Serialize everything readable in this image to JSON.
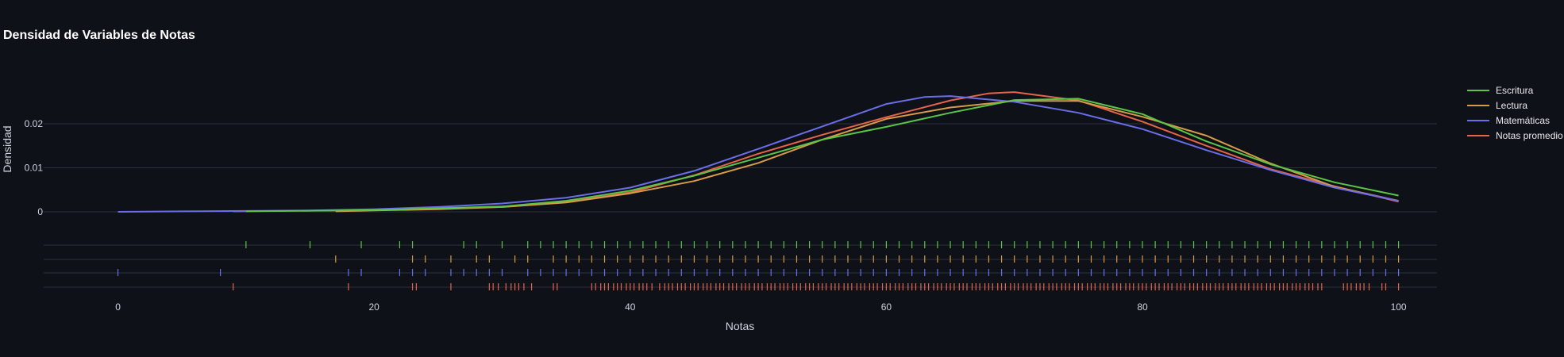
{
  "chart_data": {
    "type": "line",
    "title": "Densidad de Variables de Notas",
    "xlabel": "Notas",
    "ylabel": "Densidad",
    "xlim": [
      -5.8,
      103
    ],
    "ylim": [
      0,
      0.031
    ],
    "x_ticks": [
      0,
      20,
      40,
      60,
      80,
      100
    ],
    "y_ticks": [
      0,
      0.01,
      0.02
    ],
    "y_tick_labels": [
      "0",
      "0.01",
      "0.02"
    ],
    "grid": true,
    "legend_position": "right",
    "background": "#0e1117",
    "series": [
      {
        "name": "Escritura",
        "color": "#5ac547",
        "x": [
          10,
          20,
          30,
          35,
          40,
          45,
          50,
          55,
          60,
          65,
          70,
          75,
          80,
          85,
          90,
          95,
          100
        ],
        "y": [
          0.0001,
          0.0004,
          0.0012,
          0.0025,
          0.0048,
          0.0082,
          0.0123,
          0.0164,
          0.0193,
          0.0225,
          0.0254,
          0.0257,
          0.0222,
          0.016,
          0.0108,
          0.0067,
          0.0037
        ]
      },
      {
        "name": "Lectura",
        "color": "#d79a46",
        "x": [
          17,
          20,
          25,
          30,
          35,
          40,
          45,
          50,
          55,
          60,
          65,
          70,
          75,
          80,
          85,
          90,
          95,
          100
        ],
        "y": [
          0.0001,
          0.0003,
          0.0006,
          0.0011,
          0.0021,
          0.0042,
          0.007,
          0.0111,
          0.0164,
          0.0211,
          0.0237,
          0.0252,
          0.0252,
          0.0216,
          0.0173,
          0.011,
          0.0057,
          0.0025
        ]
      },
      {
        "name": "Matemáticas",
        "color": "#6a6ee8",
        "x": [
          0,
          5,
          10,
          15,
          20,
          25,
          30,
          35,
          40,
          45,
          50,
          55,
          60,
          63,
          65,
          70,
          75,
          80,
          85,
          90,
          95,
          100
        ],
        "y": [
          0.0,
          0.0001,
          0.0002,
          0.0003,
          0.0006,
          0.0011,
          0.0019,
          0.0032,
          0.0055,
          0.0093,
          0.0143,
          0.0194,
          0.0245,
          0.0261,
          0.0263,
          0.025,
          0.0225,
          0.0188,
          0.014,
          0.0095,
          0.0055,
          0.0025
        ]
      },
      {
        "name": "Notas promedio",
        "color": "#e7634a",
        "x": [
          9,
          20,
          30,
          35,
          40,
          45,
          50,
          55,
          60,
          65,
          68,
          70,
          75,
          80,
          85,
          90,
          95,
          100
        ],
        "y": [
          0.0001,
          0.0004,
          0.0011,
          0.0022,
          0.0044,
          0.0083,
          0.0132,
          0.0175,
          0.0215,
          0.0253,
          0.0269,
          0.0272,
          0.0253,
          0.0205,
          0.015,
          0.0097,
          0.0058,
          0.0023
        ]
      }
    ],
    "rug_data": [
      {
        "name": "Escritura",
        "values": [
          10,
          15,
          19,
          22,
          23,
          27,
          28,
          30,
          32,
          33,
          34,
          35,
          36,
          37,
          38,
          39,
          40,
          41,
          42,
          43,
          44,
          45,
          46,
          47,
          48,
          49,
          50,
          51,
          52,
          53,
          54,
          55,
          56,
          57,
          58,
          59,
          60,
          61,
          62,
          63,
          64,
          65,
          66,
          67,
          68,
          69,
          70,
          71,
          72,
          73,
          74,
          75,
          76,
          77,
          78,
          79,
          80,
          81,
          82,
          83,
          84,
          85,
          86,
          87,
          88,
          89,
          90,
          91,
          92,
          93,
          94,
          95,
          96,
          97,
          98,
          99,
          100
        ]
      },
      {
        "name": "Lectura",
        "values": [
          17,
          23,
          24,
          26,
          28,
          29,
          31,
          32,
          34,
          35,
          36,
          37,
          38,
          39,
          40,
          41,
          42,
          43,
          44,
          45,
          46,
          47,
          48,
          49,
          50,
          51,
          52,
          53,
          54,
          55,
          56,
          57,
          58,
          59,
          60,
          61,
          62,
          63,
          64,
          65,
          66,
          67,
          68,
          69,
          70,
          71,
          72,
          73,
          74,
          75,
          76,
          77,
          78,
          79,
          80,
          81,
          82,
          83,
          84,
          85,
          86,
          87,
          88,
          89,
          90,
          91,
          92,
          93,
          94,
          95,
          96,
          97,
          98,
          99,
          100
        ]
      },
      {
        "name": "Matemáticas",
        "values": [
          0,
          8,
          18,
          19,
          22,
          23,
          24,
          26,
          27,
          28,
          29,
          30,
          32,
          33,
          34,
          35,
          36,
          37,
          38,
          39,
          40,
          41,
          42,
          43,
          44,
          45,
          46,
          47,
          48,
          49,
          50,
          51,
          52,
          53,
          54,
          55,
          56,
          57,
          58,
          59,
          60,
          61,
          62,
          63,
          64,
          65,
          66,
          67,
          68,
          69,
          70,
          71,
          72,
          73,
          74,
          75,
          76,
          77,
          78,
          79,
          80,
          81,
          82,
          83,
          84,
          85,
          86,
          87,
          88,
          89,
          90,
          91,
          92,
          93,
          94,
          95,
          96,
          97,
          98,
          99,
          100
        ]
      },
      {
        "name": "Notas promedio",
        "values": [
          9,
          18,
          23,
          23.3,
          26,
          29,
          29.3,
          29.7,
          30.3,
          30.7,
          31,
          31.3,
          31.7,
          32.3,
          34,
          34.3,
          37,
          37.3,
          37.7,
          38,
          38.3,
          38.7,
          39,
          39.3,
          39.7,
          40,
          40.3,
          40.7,
          41,
          41.3,
          41.7,
          42.3,
          42.7,
          43,
          43.3,
          43.7,
          44,
          44.3,
          44.7,
          45,
          45.3,
          45.7,
          46,
          46.3,
          46.7,
          47,
          47.3,
          47.7,
          48,
          48.3,
          48.7,
          49,
          49.3,
          49.7,
          50,
          50.3,
          50.7,
          51,
          51.3,
          51.7,
          52,
          52.3,
          52.7,
          53,
          53.3,
          53.7,
          54,
          54.3,
          54.7,
          55,
          55.3,
          55.7,
          56,
          56.3,
          56.7,
          57,
          57.3,
          57.7,
          58,
          58.3,
          58.7,
          59,
          59.3,
          59.7,
          60,
          60.3,
          60.7,
          61,
          61.3,
          61.7,
          62,
          62.3,
          62.7,
          63,
          63.3,
          63.7,
          64,
          64.3,
          64.7,
          65,
          65.3,
          65.7,
          66,
          66.3,
          66.7,
          67,
          67.3,
          67.7,
          68,
          68.3,
          68.7,
          69,
          69.3,
          69.7,
          70,
          70.3,
          70.7,
          71,
          71.3,
          71.7,
          72,
          72.3,
          72.7,
          73,
          73.3,
          73.7,
          74,
          74.3,
          74.7,
          75,
          75.3,
          75.7,
          76,
          76.3,
          76.7,
          77,
          77.3,
          77.7,
          78,
          78.3,
          78.7,
          79,
          79.3,
          79.7,
          80,
          80.3,
          80.7,
          81,
          81.3,
          81.7,
          82,
          82.3,
          82.7,
          83,
          83.3,
          83.7,
          84,
          84.3,
          84.7,
          85,
          85.3,
          85.7,
          86,
          86.3,
          86.7,
          87,
          87.3,
          87.7,
          88,
          88.3,
          88.7,
          89,
          89.3,
          89.7,
          90,
          90.3,
          90.7,
          91,
          91.3,
          91.7,
          92,
          92.3,
          92.7,
          93,
          93.3,
          93.7,
          94,
          95.7,
          96,
          96.3,
          96.7,
          97,
          97.3,
          97.7,
          98.7,
          99,
          100
        ]
      }
    ]
  }
}
